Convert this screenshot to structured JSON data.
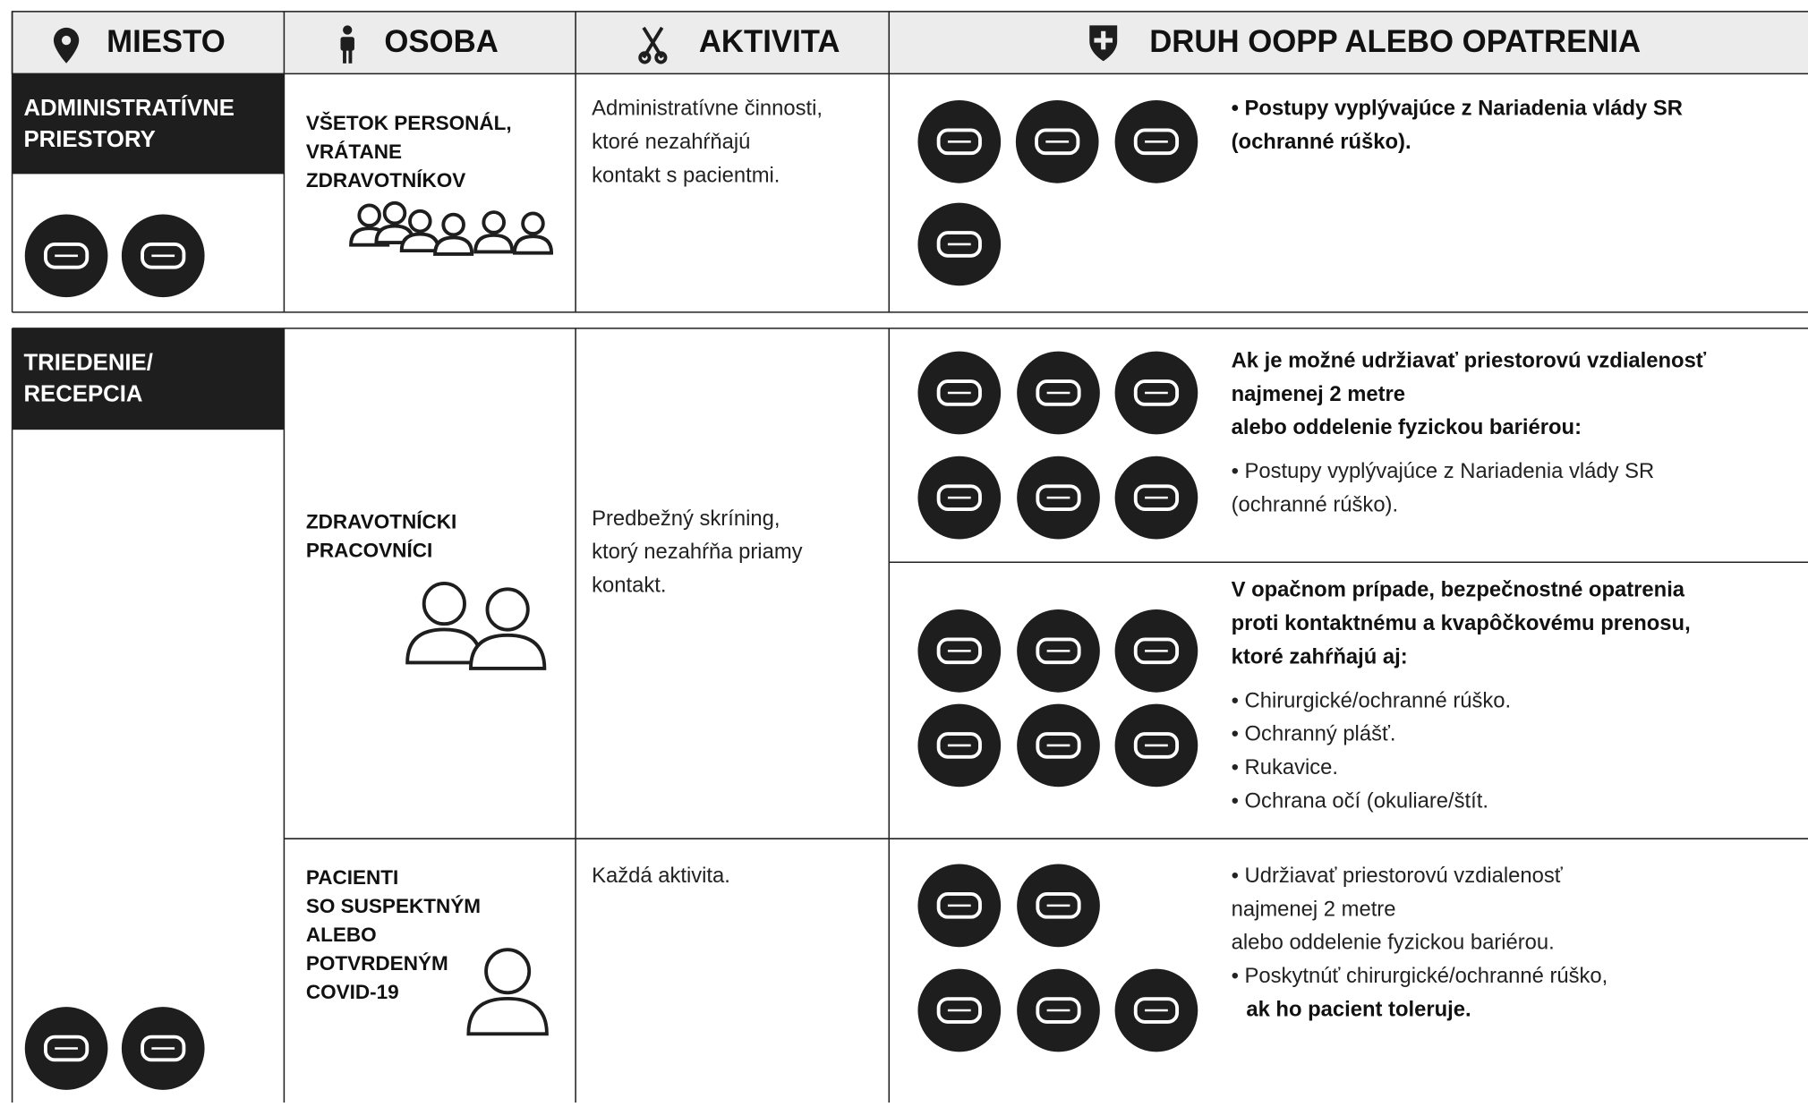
{
  "header": {
    "columns": [
      "MIESTO",
      "OSOBA",
      "AKTIVITA",
      "DRUH OOPP ALEBO OPATRENIA"
    ]
  },
  "rows": [
    {
      "place": [
        "ADMINISTRATÍVNE",
        "PRIESTORY"
      ],
      "groups": [
        {
          "person": [
            "VŠETOK PERSONÁL,",
            "VRÁTANE",
            "ZDRAVOTNÍKOV"
          ],
          "activity": [
            "Administratívne činnosti,",
            "ktoré nezahŕňajú",
            "kontakt s pacientmi."
          ],
          "measures": [
            {
              "bold_lines": [
                "• Postupy vyplývajúce z Nariadenia vlády SR",
                " (ochranné rúško)."
              ]
            }
          ]
        }
      ]
    },
    {
      "place": [
        "TRIEDENIE/",
        "RECEPCIA"
      ],
      "groups": [
        {
          "person": [
            "ZDRAVOTNÍCKI",
            "PRACOVNÍCI"
          ],
          "activity": [
            "Predbežný skríning,",
            "ktorý nezahŕňa priamy",
            "kontakt."
          ],
          "measures": [
            {
              "bold_lines": [
                "Ak je možné udržiavať priestorovú vzdialenosť",
                "najmenej 2 metre",
                "alebo oddelenie fyzickou bariérou:"
              ],
              "lines": [
                "• Postupy vyplývajúce z Nariadenia vlády SR",
                "  (ochranné rúško)."
              ]
            },
            {
              "bold_lines": [
                "V opačnom prípade, bezpečnostné opatrenia",
                "proti kontaktnému a kvapôčkovému prenosu,",
                "ktoré zahŕňajú aj:"
              ],
              "lines": [
                "• Chirurgické/ochranné rúško.",
                "• Ochranný plášť.",
                "• Rukavice.",
                "• Ochrana očí (okuliare/štít."
              ]
            }
          ]
        },
        {
          "person": [
            "PACIENTI",
            "SO SUSPEKTNÝM",
            "ALEBO",
            "POTVRDENÝM",
            "COVID-19"
          ],
          "activity": [
            "Každá aktivita."
          ],
          "measures": [
            {
              "lines": [
                "• Udržiavať priestorovú vzdialenosť",
                "  najmenej 2 metre",
                "   alebo oddelenie fyzickou bariérou.",
                "• Poskytnúť chirurgické/ochranné rúško,"
              ],
              "bold_lines": [
                "ak ho pacient toleruje."
              ]
            }
          ]
        }
      ]
    }
  ]
}
